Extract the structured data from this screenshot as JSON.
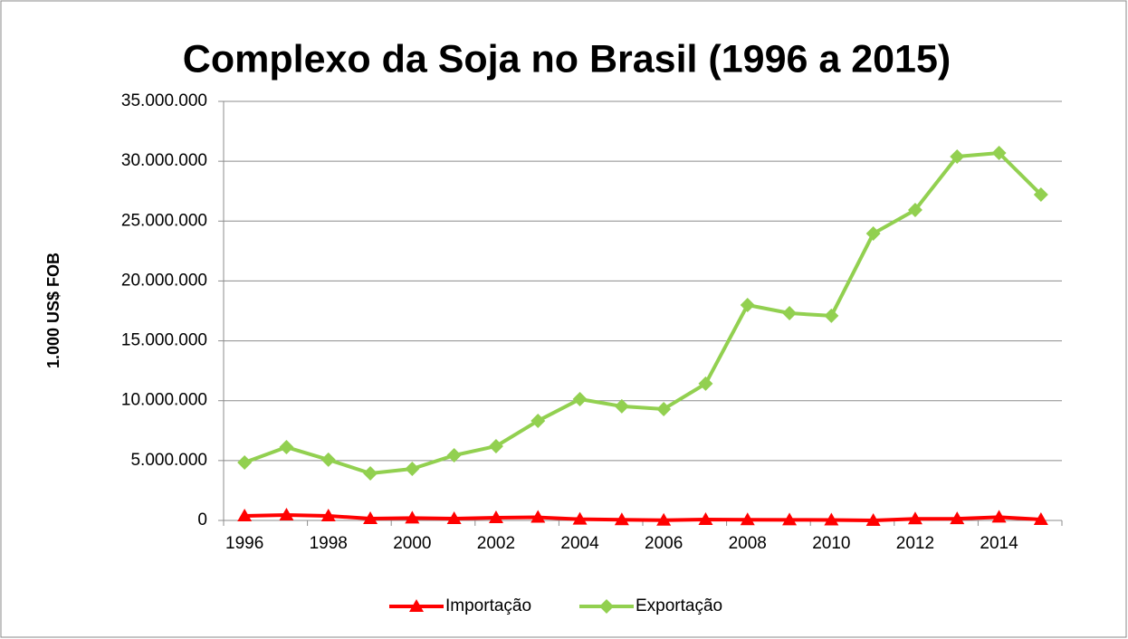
{
  "chart_data": {
    "type": "line",
    "title": "Complexo da Soja no Brasil (1996 a 2015)",
    "y_label": "1.000 US$ FOB",
    "categories": [
      "1996",
      null,
      "1998",
      null,
      "2000",
      null,
      "2002",
      null,
      "2004",
      null,
      "2006",
      null,
      "2008",
      null,
      "2010",
      null,
      "2012",
      null,
      "2014",
      null
    ],
    "series": [
      {
        "name": "Importação",
        "color": "#ff0000",
        "marker": "triangle",
        "values": [
          380000,
          450000,
          380000,
          150000,
          200000,
          150000,
          230000,
          260000,
          100000,
          60000,
          20000,
          80000,
          60000,
          50000,
          40000,
          0,
          130000,
          140000,
          270000,
          80000
        ]
      },
      {
        "name": "Exportação",
        "color": "#92d050",
        "marker": "diamond",
        "values": [
          4840000,
          6120000,
          5070000,
          3930000,
          4310000,
          5440000,
          6200000,
          8320000,
          10130000,
          9530000,
          9300000,
          11420000,
          17990000,
          17310000,
          17090000,
          23960000,
          25930000,
          30390000,
          30690000,
          27210000
        ]
      }
    ],
    "ylim": [
      0,
      35000000
    ],
    "yticks": [
      0,
      {
        "value": 5000000,
        "label": "5.000.000"
      },
      {
        "value": 10000000,
        "label": "10.000.000"
      },
      {
        "value": 15000000,
        "label": "15.000.000"
      },
      {
        "value": 20000000,
        "label": "20.000.000"
      },
      {
        "value": 25000000,
        "label": "25.000.000"
      },
      {
        "value": 30000000,
        "label": "30.000.000"
      },
      {
        "value": 35000000,
        "label": "35.000.000"
      }
    ],
    "grid": true,
    "legend": "bottom"
  }
}
